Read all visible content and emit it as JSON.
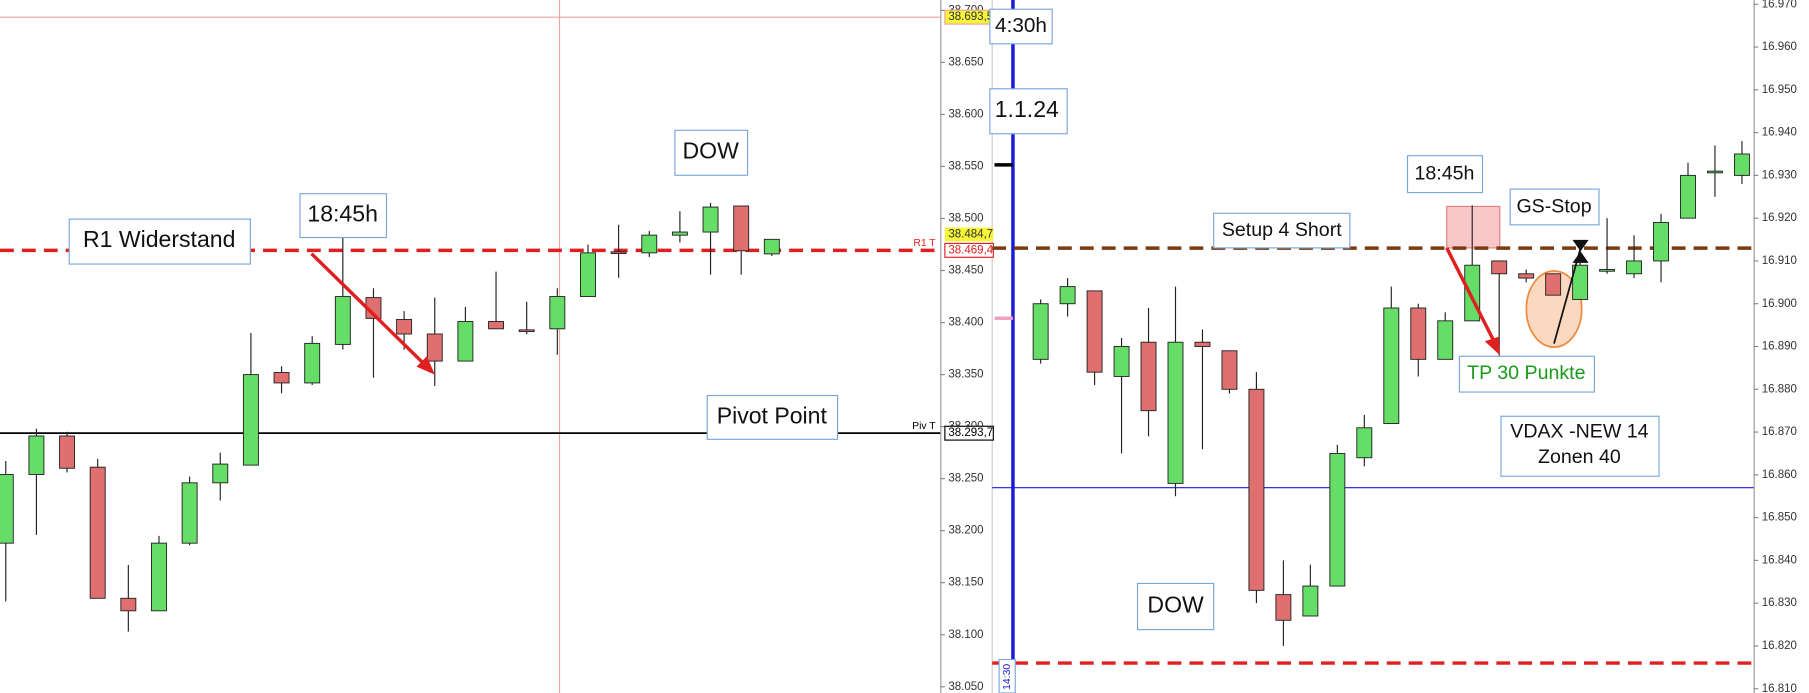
{
  "chart_data": [
    {
      "type": "candlestick",
      "open": [
        38188,
        38254,
        38291,
        38261,
        38135,
        38123,
        38188,
        38246,
        38263,
        38352,
        38342,
        38379,
        38424,
        38403,
        38389,
        38363,
        38401,
        38393,
        38394,
        38425,
        38468,
        38467,
        38484,
        38487,
        38512,
        38466
      ],
      "high": [
        38267,
        38298,
        38295,
        38269,
        38167,
        38195,
        38252,
        38275,
        38390,
        38358,
        38387,
        38484,
        38433,
        38411,
        38424,
        38415,
        38449,
        38420,
        38433,
        38475,
        38494,
        38488,
        38507,
        38515,
        38512,
        38480
      ],
      "low": [
        38132,
        38196,
        38256,
        38135,
        38103,
        38123,
        38186,
        38229,
        38263,
        38332,
        38340,
        38374,
        38347,
        38374,
        38339,
        38363,
        38394,
        38389,
        38369,
        38425,
        38443,
        38463,
        38477,
        38446,
        38446,
        38464
      ],
      "close": [
        38254,
        38291,
        38260,
        38135,
        38123,
        38188,
        38246,
        38264,
        38350,
        38342,
        38380,
        38425,
        38404,
        38389,
        38363,
        38401,
        38394,
        38392,
        38425,
        38467,
        38467,
        38484,
        38487,
        38511,
        38469,
        38480
      ],
      "up_color": "#66dd66",
      "down_color": "#e07070",
      "ylim": [
        38044,
        38710
      ],
      "yticks": [
        {
          "value": 38700,
          "label": "38.700"
        },
        {
          "value": 38650,
          "label": "38.650"
        },
        {
          "value": 38600,
          "label": "38.600"
        },
        {
          "value": 38550,
          "label": "38.550"
        },
        {
          "value": 38500,
          "label": "38.500"
        },
        {
          "value": 38450,
          "label": "38.450"
        },
        {
          "value": 38400,
          "label": "38.400"
        },
        {
          "value": 38350,
          "label": "38.350"
        },
        {
          "value": 38300,
          "label": "38.300"
        },
        {
          "value": 38250,
          "label": "38.250"
        },
        {
          "value": 38200,
          "label": "38.200"
        },
        {
          "value": 38150,
          "label": "38.150"
        },
        {
          "value": 38100,
          "label": "38.100"
        },
        {
          "value": 38050,
          "label": "38.050"
        }
      ],
      "levels": [
        {
          "value": 38693.5,
          "label": "38.693,5",
          "color": "#f4a0a0",
          "style": "solid",
          "tag_color": "#f5f53a"
        },
        {
          "value": 38469.4,
          "label": "38.469,4",
          "name": "R1 T",
          "color": "#e02020",
          "style": "dashed",
          "tag_color": "#ffffff"
        },
        {
          "value": 38293.7,
          "label": "38.293,7",
          "name": "Piv T",
          "color": "#000000",
          "style": "solid",
          "tag_color": "#ffffff"
        }
      ],
      "price_tags": [
        {
          "value": 38484.7,
          "label": "38.484,7",
          "color": "#f5f53a"
        }
      ],
      "annotations": [
        "R1 Widerstand",
        "18:45h",
        "DOW",
        "Pivot Point"
      ]
    },
    {
      "type": "candlestick",
      "open": [
        16887,
        16900,
        16903,
        16883,
        16891,
        16858,
        16891,
        16889,
        16880,
        16832,
        16827,
        16834,
        16864,
        16872,
        16899,
        16887,
        16896,
        16910,
        16907,
        16907,
        16901,
        16908,
        16907,
        16910,
        16920,
        16931,
        16930
      ],
      "high": [
        16901,
        16906,
        16903,
        16892,
        16899,
        16904,
        16894,
        16889,
        16884,
        16840,
        16839,
        16867,
        16874,
        16904,
        16900,
        16898,
        16923,
        16910,
        16908,
        16907,
        16910,
        16920,
        16916,
        16921,
        16933,
        16937,
        16938
      ],
      "low": [
        16886,
        16897,
        16881,
        16865,
        16869,
        16855,
        16866,
        16879,
        16830,
        16820,
        16827,
        16834,
        16862,
        16872,
        16883,
        16887,
        16896,
        16887,
        16905,
        16902,
        16901,
        16907,
        16906,
        16905,
        16920,
        16925,
        16928
      ],
      "close": [
        16900,
        16904,
        16884,
        16890,
        16875,
        16891,
        16890,
        16880,
        16833,
        16826,
        16834,
        16865,
        16871,
        16899,
        16887,
        16896,
        16909,
        16907,
        16906,
        16902,
        16909,
        16908,
        16910,
        16919,
        16930,
        16931,
        16935
      ],
      "up_color": "#66dd66",
      "down_color": "#e07070",
      "ylim": [
        16809,
        16971
      ],
      "yticks": [
        {
          "value": 16970,
          "label": "16.970"
        },
        {
          "value": 16960,
          "label": "16.960"
        },
        {
          "value": 16950,
          "label": "16.950"
        },
        {
          "value": 16940,
          "label": "16.940"
        },
        {
          "value": 16930,
          "label": "16.930"
        },
        {
          "value": 16920,
          "label": "16.920"
        },
        {
          "value": 16910,
          "label": "16.910"
        },
        {
          "value": 16900,
          "label": "16.900"
        },
        {
          "value": 16890,
          "label": "16.890"
        },
        {
          "value": 16880,
          "label": "16.880"
        },
        {
          "value": 16870,
          "label": "16.870"
        },
        {
          "value": 16860,
          "label": "16.860"
        },
        {
          "value": 16850,
          "label": "16.850"
        },
        {
          "value": 16840,
          "label": "16.840"
        },
        {
          "value": 16830,
          "label": "16.830"
        },
        {
          "value": 16820,
          "label": "16.820"
        },
        {
          "value": 16810,
          "label": "16.810"
        }
      ],
      "levels": [
        {
          "value": 16913,
          "color": "#7a3b10",
          "style": "dashed"
        },
        {
          "value": 16857,
          "color": "#1a1adc",
          "style": "solid"
        },
        {
          "value": 16816,
          "color": "#e02020",
          "style": "dashed"
        }
      ],
      "annotations": [
        "4:30h",
        "1.1.24",
        "Setup 4 Short",
        "18:45h",
        "GS-Stop",
        "TP 30 Punkte",
        "VDAX -NEW 14",
        "Zonen 40",
        "DOW",
        "14:30"
      ]
    }
  ]
}
